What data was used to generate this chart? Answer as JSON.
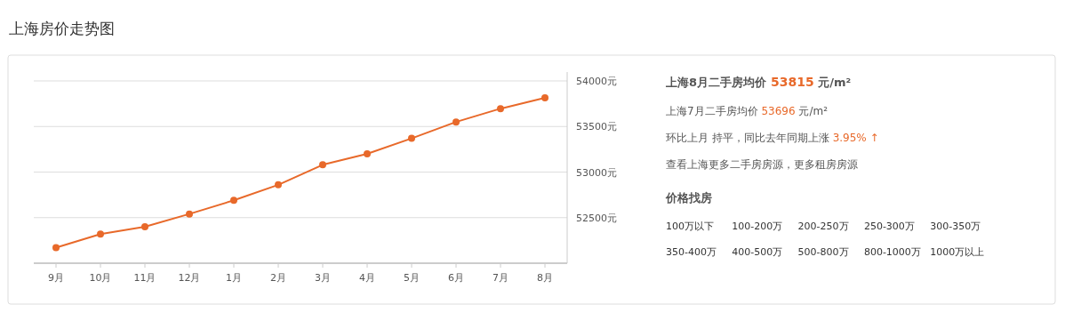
{
  "chart_data": [
    {
      "type": "line",
      "title": "上海房价走势图",
      "categories": [
        "9月",
        "10月",
        "11月",
        "12月",
        "1月",
        "2月",
        "3月",
        "4月",
        "5月",
        "6月",
        "7月",
        "8月"
      ],
      "series": [
        {
          "color": "#e8692a",
          "values": [
            52170,
            52320,
            52400,
            52540,
            52690,
            52860,
            53080,
            53200,
            53370,
            53550,
            53696,
            53815
          ]
        }
      ],
      "ylim": [
        52000,
        54000
      ],
      "yticks": [
        {
          "value": 52500,
          "label": "52500元"
        },
        {
          "value": 53000,
          "label": "53000元"
        },
        {
          "value": 53500,
          "label": "53500元"
        },
        {
          "value": 54000,
          "label": "54000元"
        }
      ],
      "grid": "y",
      "marker": "circle",
      "line_style": "solid"
    },
    {
      "type": "other",
      "subtitle": "价格找房",
      "annotations": [
        "上海8月二手房均价 53815 元/m²",
        "上海7月二手房均价 53696 元/m²",
        "环比上月 持平，同比去年同期上涨 3.95% ↑",
        "查看上海更多二手房房源，更多租房房源"
      ],
      "categories": [
        "100万以下",
        "100-200万",
        "200-250万",
        "250-300万",
        "300-350万",
        "350-400万",
        "400-500万",
        "500-800万",
        "800-1000万",
        "1000万以上"
      ]
    }
  ]
}
